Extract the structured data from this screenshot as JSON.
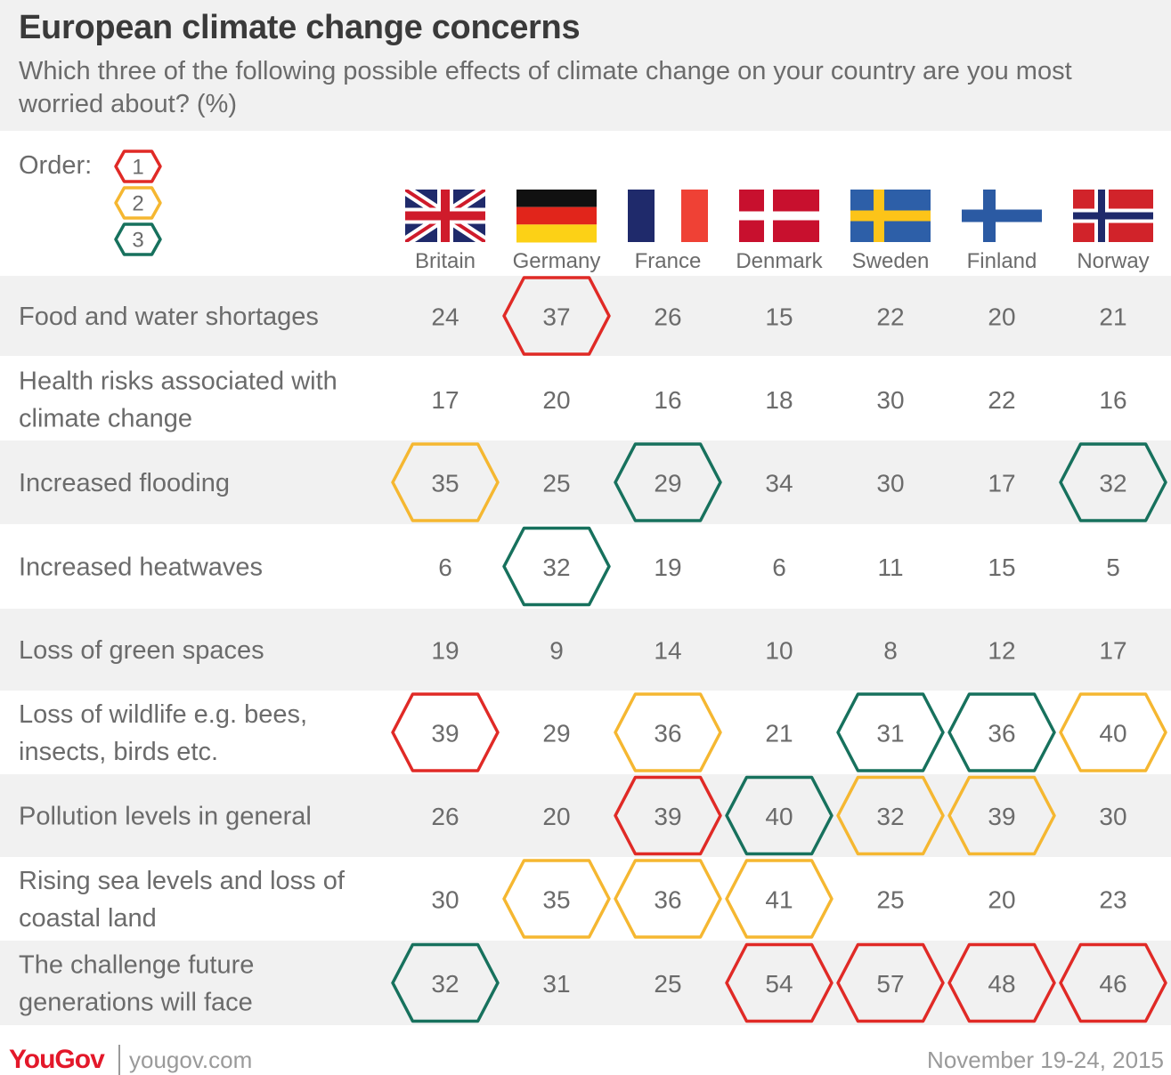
{
  "title": "European climate change concerns",
  "subtitle": "Which three of the following possible effects of climate change on your country are you most worried about? (%)",
  "legend": {
    "label": "Order:",
    "items": [
      {
        "rank": "1",
        "color": "#e02a26"
      },
      {
        "rank": "2",
        "color": "#f5b731"
      },
      {
        "rank": "3",
        "color": "#17715d"
      }
    ]
  },
  "footer": {
    "logo": "YouGov",
    "site": "yougov.com",
    "date": "November 19-24, 2015"
  },
  "chart_data": {
    "type": "table",
    "columns": [
      "Britain",
      "Germany",
      "France",
      "Denmark",
      "Sweden",
      "Finland",
      "Norway"
    ],
    "flags": [
      "uk-flag",
      "germany-flag",
      "france-flag",
      "denmark-flag",
      "sweden-flag",
      "finland-flag",
      "norway-flag"
    ],
    "rows": [
      {
        "label": [
          "Food and water shortages"
        ],
        "values": [
          24,
          37,
          26,
          15,
          22,
          20,
          21
        ],
        "ranks": [
          0,
          1,
          0,
          0,
          0,
          0,
          0
        ]
      },
      {
        "label": [
          "Health risks associated with",
          "climate change"
        ],
        "values": [
          17,
          20,
          16,
          18,
          30,
          22,
          16
        ],
        "ranks": [
          0,
          0,
          0,
          0,
          0,
          0,
          0
        ]
      },
      {
        "label": [
          "Increased flooding"
        ],
        "values": [
          35,
          25,
          29,
          34,
          30,
          17,
          32
        ],
        "ranks": [
          2,
          0,
          3,
          0,
          0,
          0,
          3
        ]
      },
      {
        "label": [
          "Increased heatwaves"
        ],
        "values": [
          6,
          32,
          19,
          6,
          11,
          15,
          5
        ],
        "ranks": [
          0,
          3,
          0,
          0,
          0,
          0,
          0
        ]
      },
      {
        "label": [
          "Loss of green spaces"
        ],
        "values": [
          19,
          9,
          14,
          10,
          8,
          12,
          17
        ],
        "ranks": [
          0,
          0,
          0,
          0,
          0,
          0,
          0
        ]
      },
      {
        "label": [
          "Loss of wildlife e.g. bees,",
          "insects, birds etc."
        ],
        "values": [
          39,
          29,
          36,
          21,
          31,
          36,
          40
        ],
        "ranks": [
          1,
          0,
          2,
          0,
          3,
          3,
          2
        ]
      },
      {
        "label": [
          "Pollution levels in general"
        ],
        "values": [
          26,
          20,
          39,
          40,
          32,
          39,
          30
        ],
        "ranks": [
          0,
          0,
          1,
          3,
          2,
          2,
          0
        ]
      },
      {
        "label": [
          "Rising sea levels and loss of",
          "coastal land"
        ],
        "values": [
          30,
          35,
          36,
          41,
          25,
          20,
          23
        ],
        "ranks": [
          0,
          2,
          2,
          2,
          0,
          0,
          0
        ]
      },
      {
        "label": [
          "The challenge future",
          "generations will face"
        ],
        "values": [
          32,
          31,
          25,
          54,
          57,
          48,
          46
        ],
        "ranks": [
          3,
          0,
          0,
          1,
          1,
          1,
          1
        ]
      }
    ]
  }
}
